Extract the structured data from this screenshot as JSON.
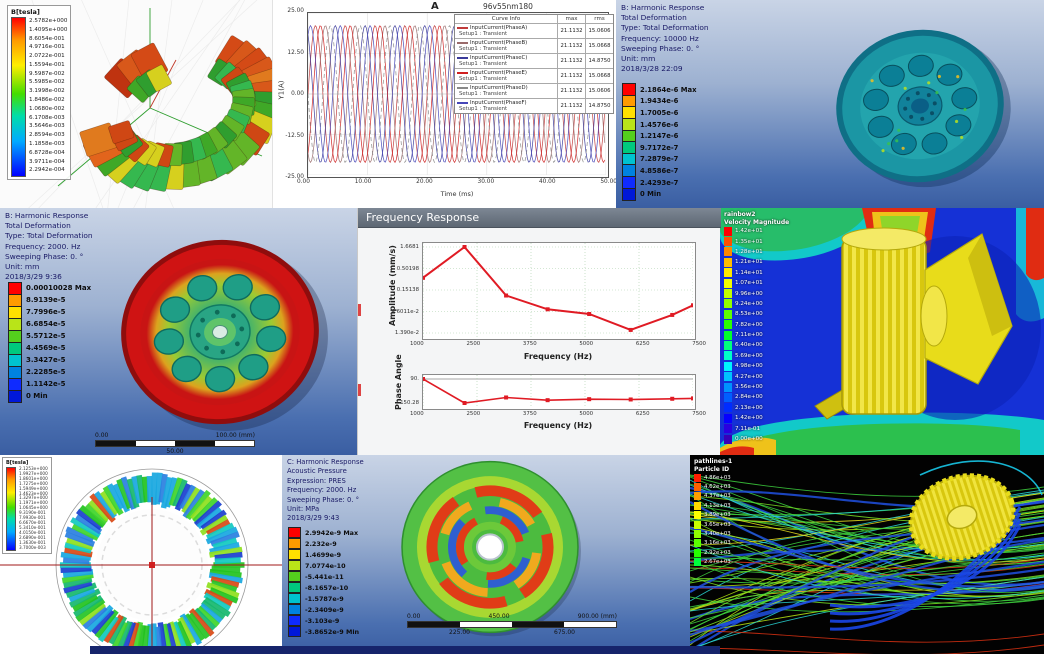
{
  "panels": {
    "flux_torus": {
      "legend_title": "B[tesla]",
      "legend_values": [
        "2.5782e+000",
        "1.4095e+000",
        "8.6054e-001",
        "4.9716e-001",
        "2.0722e-001",
        "1.5594e-001",
        "9.5987e-002",
        "5.5985e-002",
        "3.1998e-002",
        "1.8486e-002",
        "1.0680e-002",
        "6.1708e-003",
        "3.5646e-003",
        "2.8594e-003",
        "1.1858e-003",
        "6.8728e-004",
        "3.9711e-004",
        "2.2942e-004"
      ]
    },
    "flux_rotor": {
      "legend_title": "B[tesla]",
      "legend_values": [
        "2.1253e+000",
        "1.9927e+000",
        "1.8601e+000",
        "1.7275e+000",
        "1.5949e+000",
        "1.4623e+000",
        "1.3297e+000",
        "1.1971e+000",
        "1.0645e+000",
        "9.3190e-001",
        "7.9930e-001",
        "6.6670e-001",
        "5.3410e-001",
        "4.0150e-001",
        "2.6890e-001",
        "1.3630e-001",
        "3.7000e-003"
      ]
    },
    "harm10000": {
      "header": [
        "B: Harmonic Response",
        "Total Deformation",
        "Type: Total Deformation",
        "Frequency: 10000 Hz",
        "Sweeping Phase: 0. °",
        "Unit: mm",
        "2018/3/28 22:09"
      ],
      "legend": [
        {
          "label": "2.1864e-6 Max",
          "color": "#ff0000"
        },
        {
          "label": "1.9434e-6",
          "color": "#ff9b00"
        },
        {
          "label": "1.7005e-6",
          "color": "#ffe000"
        },
        {
          "label": "1.4576e-6",
          "color": "#b9e418"
        },
        {
          "label": "1.2147e-6",
          "color": "#54cf1d"
        },
        {
          "label": "9.7172e-7",
          "color": "#00c97e"
        },
        {
          "label": "7.2879e-7",
          "color": "#00c3cf"
        },
        {
          "label": "4.8586e-7",
          "color": "#0082e0"
        },
        {
          "label": "2.4293e-7",
          "color": "#0f2bff"
        },
        {
          "label": "0 Min",
          "color": "#0018d8"
        }
      ]
    },
    "harm2000": {
      "header": [
        "B: Harmonic Response",
        "Total Deformation",
        "Type: Total Deformation",
        "Frequency: 2000. Hz",
        "Sweeping Phase: 0. °",
        "Unit: mm",
        "2018/3/29 9:36"
      ],
      "legend": [
        {
          "label": "0.00010028 Max",
          "color": "#ff0000"
        },
        {
          "label": "8.9139e-5",
          "color": "#ff9b00"
        },
        {
          "label": "7.7996e-5",
          "color": "#ffe000"
        },
        {
          "label": "6.6854e-5",
          "color": "#b9e418"
        },
        {
          "label": "5.5712e-5",
          "color": "#54cf1d"
        },
        {
          "label": "4.4569e-5",
          "color": "#00c97e"
        },
        {
          "label": "3.3427e-5",
          "color": "#00c3cf"
        },
        {
          "label": "2.2285e-5",
          "color": "#0082e0"
        },
        {
          "label": "1.1142e-5",
          "color": "#0f2bff"
        },
        {
          "label": "0 Min",
          "color": "#0018d8"
        }
      ],
      "scale": {
        "top": [
          "0.00",
          "100.00 (mm)"
        ],
        "bottom": [
          "50.00"
        ]
      }
    },
    "acoustic": {
      "header": [
        "C: Harmonic Response",
        "Acoustic Pressure",
        "Expression: PRES",
        "Frequency: 2000. Hz",
        "Sweeping Phase: 0. °",
        "Unit: MPa",
        "2018/3/29 9:43"
      ],
      "legend": [
        {
          "label": "2.9942e-9 Max",
          "color": "#ff0000"
        },
        {
          "label": "2.232e-9",
          "color": "#ff9b00"
        },
        {
          "label": "1.4699e-9",
          "color": "#ffe000"
        },
        {
          "label": "7.0774e-10",
          "color": "#b9e418"
        },
        {
          "label": "-5.441e-11",
          "color": "#54cf1d"
        },
        {
          "label": "-8.1657e-10",
          "color": "#00c97e"
        },
        {
          "label": "-1.5787e-9",
          "color": "#00c3cf"
        },
        {
          "label": "-2.3409e-9",
          "color": "#0082e0"
        },
        {
          "label": "-3.103e-9",
          "color": "#0f2bff"
        },
        {
          "label": "-3.8652e-9 Min",
          "color": "#0018d8"
        }
      ],
      "scale": {
        "top": [
          "0.00",
          "450.00",
          "900.00 (mm)"
        ],
        "bottom": [
          "225.00",
          "675.00"
        ]
      }
    },
    "freq_response": {
      "title": "Frequency Response"
    },
    "velocity": {
      "title_lines": [
        "rainbow2",
        "Velocity Magnitude"
      ],
      "items": [
        {
          "v": "1.42e+01",
          "c": "#ff0000"
        },
        {
          "v": "1.35e+01",
          "c": "#ff4f00"
        },
        {
          "v": "1.28e+01",
          "c": "#ff8800"
        },
        {
          "v": "1.21e+01",
          "c": "#ffbc00"
        },
        {
          "v": "1.14e+01",
          "c": "#ffe900"
        },
        {
          "v": "1.07e+01",
          "c": "#f4ff00"
        },
        {
          "v": "9.96e+00",
          "c": "#c4ff00"
        },
        {
          "v": "9.24e+00",
          "c": "#93ff00"
        },
        {
          "v": "8.53e+00",
          "c": "#5fff00"
        },
        {
          "v": "7.82e+00",
          "c": "#2bff00"
        },
        {
          "v": "7.11e+00",
          "c": "#00ff2b"
        },
        {
          "v": "6.40e+00",
          "c": "#00ff7c"
        },
        {
          "v": "5.69e+00",
          "c": "#00ffc8"
        },
        {
          "v": "4.98e+00",
          "c": "#00f4ff"
        },
        {
          "v": "4.27e+00",
          "c": "#00c3ff"
        },
        {
          "v": "3.56e+00",
          "c": "#0092ff"
        },
        {
          "v": "2.84e+00",
          "c": "#005eff"
        },
        {
          "v": "2.13e+00",
          "c": "#002cff"
        },
        {
          "v": "1.42e+00",
          "c": "#0600ff"
        },
        {
          "v": "7.11e-01",
          "c": "#2a00e0"
        },
        {
          "v": "0.00e+00",
          "c": "#3800b8"
        }
      ]
    },
    "particles": {
      "title_lines": [
        "pathlines-1",
        "Particle ID"
      ],
      "items": [
        {
          "v": "4.86e+03",
          "c": "#ff1e00"
        },
        {
          "v": "4.62e+03",
          "c": "#ff6000"
        },
        {
          "v": "4.37e+03",
          "c": "#ff9d00"
        },
        {
          "v": "4.13e+03",
          "c": "#ffd800"
        },
        {
          "v": "3.89e+03",
          "c": "#fdff00"
        },
        {
          "v": "3.65e+03",
          "c": "#c8ff00"
        },
        {
          "v": "3.40e+03",
          "c": "#92ff00"
        },
        {
          "v": "3.16e+03",
          "c": "#5bff00"
        },
        {
          "v": "2.92e+03",
          "c": "#25ff00"
        },
        {
          "v": "2.67e+03",
          "c": "#00ff3c"
        }
      ]
    }
  },
  "chart_data": [
    {
      "id": "phase-currents",
      "type": "line",
      "title": "96v55nm180",
      "corner_label": "A",
      "xlabel": "Time (ms)",
      "ylabel": "Y1(A)",
      "xlim": [
        0,
        50
      ],
      "ylim": [
        -25,
        25
      ],
      "xticks": [
        "0.00",
        "10.00",
        "20.00",
        "30.00",
        "40.00",
        "50.00"
      ],
      "yticks": [
        "25.00",
        "12.50",
        "0.00",
        "-12.50",
        "-25.00"
      ],
      "grid": true,
      "waveform": {
        "amplitude": 21.1132,
        "period_ms": 5,
        "phase_offsets_deg": [
          0,
          120,
          240,
          60,
          180,
          300
        ]
      },
      "legend_header": [
        "Curve Info",
        "max",
        "rms"
      ],
      "series": [
        {
          "name": "InputCurrent(PhaseA)",
          "setup": "Setup1 : Transient",
          "max": "21.1132",
          "rms": "15.0606",
          "color": "#c03a3a",
          "dash": ""
        },
        {
          "name": "InputCurrent(PhaseB)",
          "setup": "Setup1 : Transient",
          "max": "21.1132",
          "rms": "15.0668",
          "color": "#9a6b6b",
          "dash": ""
        },
        {
          "name": "InputCurrent(PhaseC)",
          "setup": "Setup1 : Transient",
          "max": "21.1132",
          "rms": "14.8750",
          "color": "#3a3a9a",
          "dash": ""
        },
        {
          "name": "InputCurrent(PhaseE)",
          "setup": "Setup1 : Transient",
          "max": "21.1132",
          "rms": "15.0668",
          "color": "#d02020",
          "dash": ""
        },
        {
          "name": "InputCurrent(PhaseD)",
          "setup": "Setup1 : Transient",
          "max": "21.1132",
          "rms": "15.0606",
          "color": "#888888",
          "dash": "4 3"
        },
        {
          "name": "InputCurrent(PhaseF)",
          "setup": "Setup1 : Transient",
          "max": "21.1132",
          "rms": "14.8750",
          "color": "#4646b8",
          "dash": ""
        }
      ]
    },
    {
      "id": "freq-amplitude",
      "type": "line",
      "ylabel": "Amplitude (mm/s)",
      "xlabel": "Frequency (Hz)",
      "yscale": "log",
      "yticks": [
        "1.6681",
        "0.50198",
        "0.15138",
        "4.6011e-2",
        "1.390e-2"
      ],
      "xticks": [
        "1000",
        "2500",
        "3750",
        "5000",
        "6250",
        "7500"
      ],
      "x": [
        1000,
        2000,
        3000,
        4000,
        5000,
        6000,
        7000,
        7600
      ],
      "y": [
        0.3,
        1.6681,
        0.112,
        0.052,
        0.04,
        0.0165,
        0.038,
        0.065
      ],
      "color": "#e01b24",
      "grid": true
    },
    {
      "id": "freq-phase",
      "type": "line",
      "ylabel": "Phase Angle",
      "xlabel": "Frequency (Hz)",
      "yticks": [
        "90.",
        "-150.28"
      ],
      "xticks": [
        "1000",
        "2500",
        "3750",
        "5000",
        "6250",
        "7500"
      ],
      "ylim": [
        -150.28,
        90
      ],
      "x": [
        1000,
        2000,
        3000,
        4000,
        5000,
        6000,
        7000,
        7600
      ],
      "y": [
        90,
        -150.28,
        -95,
        -122,
        -112,
        -115,
        -108,
        -104
      ],
      "color": "#e01b24",
      "grid": true
    }
  ]
}
